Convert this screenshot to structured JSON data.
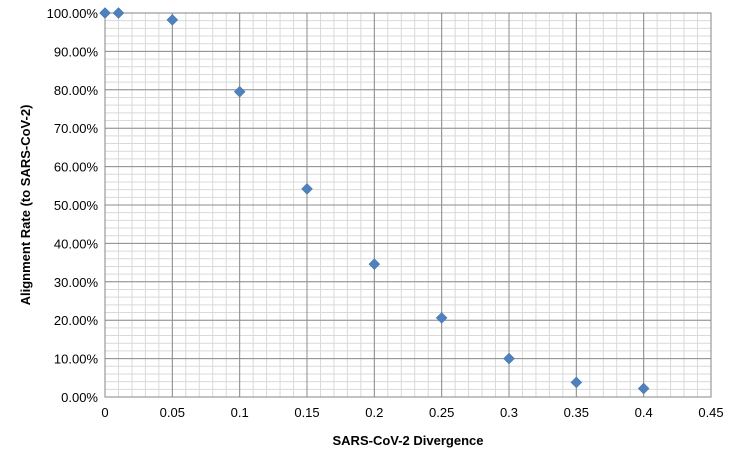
{
  "chart_data": {
    "type": "scatter",
    "title": "",
    "xlabel": "SARS-CoV-2 Divergence",
    "ylabel": "Alignment Rate  (to SARS-CoV-2)",
    "xlim": [
      0,
      0.45
    ],
    "ylim": [
      0,
      1
    ],
    "x_ticks": [
      0,
      0.05,
      0.1,
      0.15,
      0.2,
      0.25,
      0.3,
      0.35,
      0.4,
      0.45
    ],
    "x_tick_labels": [
      "0",
      "0.05",
      "0.1",
      "0.15",
      "0.2",
      "0.25",
      "0.3",
      "0.35",
      "0.4",
      "0.45"
    ],
    "y_ticks": [
      0,
      0.1,
      0.2,
      0.3,
      0.4,
      0.5,
      0.6,
      0.7,
      0.8,
      0.9,
      1.0
    ],
    "y_tick_labels": [
      "0.00%",
      "10.00%",
      "20.00%",
      "30.00%",
      "40.00%",
      "50.00%",
      "60.00%",
      "70.00%",
      "80.00%",
      "90.00%",
      "100.00%"
    ],
    "minor_grid_x_step": 0.01,
    "minor_grid_y_step": 0.02,
    "grid": true,
    "marker": "diamond",
    "marker_color": "#4f81bd",
    "series": [
      {
        "x": [
          0,
          0.01,
          0.05,
          0.1,
          0.15,
          0.2,
          0.25,
          0.3,
          0.35,
          0.4
        ],
        "y": [
          1.0,
          1.0,
          0.982,
          0.795,
          0.542,
          0.346,
          0.206,
          0.1,
          0.038,
          0.022
        ]
      }
    ]
  }
}
